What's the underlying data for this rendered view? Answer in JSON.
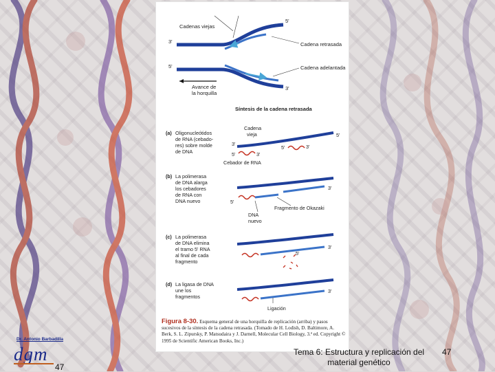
{
  "colors": {
    "strand": "#1f3f9a",
    "new_strand": "#3b73c8",
    "primer": "#c43020",
    "arrow": "#4aa6d6"
  },
  "figure": {
    "top_labels": {
      "old_chains": "Cadenas viejas",
      "five_prime_top": "5'",
      "three_prime_left": "3'",
      "lagging": "Cadena retrasada",
      "five_prime_left": "5'",
      "leading": "Cadena adelantada",
      "three_prime_bottom": "3'",
      "fork_advance_1": "Avance de",
      "fork_advance_2": "la horquilla"
    },
    "section_title": "Síntesis de la cadena retrasada",
    "steps": [
      {
        "tag": "(a)",
        "lines": [
          "Oligonucleótidos",
          "de RNA (cebado-",
          "res) sobre molde",
          "de DNA"
        ]
      },
      {
        "tag": "(b)",
        "lines": [
          "La polimerasa",
          "de DNA alarga",
          "los cebadores",
          "de RNA con",
          "DNA nuevo"
        ]
      },
      {
        "tag": "(c)",
        "lines": [
          "La polimerasa",
          "de DNA elimina",
          "el tramo 5' RNA",
          "al final de cada",
          "fragmento"
        ]
      },
      {
        "tag": "(d)",
        "lines": [
          "La ligasa de DNA",
          "une los",
          "fragmentos"
        ]
      }
    ],
    "step_a": {
      "old_chain_1": "Cadena",
      "old_chain_2": "vieja",
      "p5": "5'",
      "p3": "3'",
      "p3b": "3'",
      "p5b": "5'",
      "p3c": "3'",
      "primer": "Cebador de RNA"
    },
    "step_b": {
      "p3": "3'",
      "p5": "5'",
      "okazaki": "Fragmento de Okazaki",
      "new_dna_1": "DNA",
      "new_dna_2": "nuevo"
    },
    "step_c": {
      "p3": "3'",
      "p5": "5'"
    },
    "step_d": {
      "p3": "3'",
      "ligation": "Ligación"
    },
    "caption": {
      "figure_no": "Figura 8-30.",
      "text": "Esquema general de una horquilla de replicación (arriba) y pasos sucesivos de la síntesis de la cadena retrasada. (Tomado de H. Lodish, D. Baltimore, A. Berk, S. L. Zipursky, P. Matsudaira y J. Darnell, Molecular Cell Biology, 3.ª ed. Copyright © 1995 de Scientific American Books, Inc.)"
    }
  },
  "footer": {
    "author": "Dr. Antonio Barbadilla",
    "logo": "dgm",
    "slide_number_left": "47",
    "title": "Tema 6: Estructura y replicación del material genético",
    "slide_number_right": "47"
  }
}
